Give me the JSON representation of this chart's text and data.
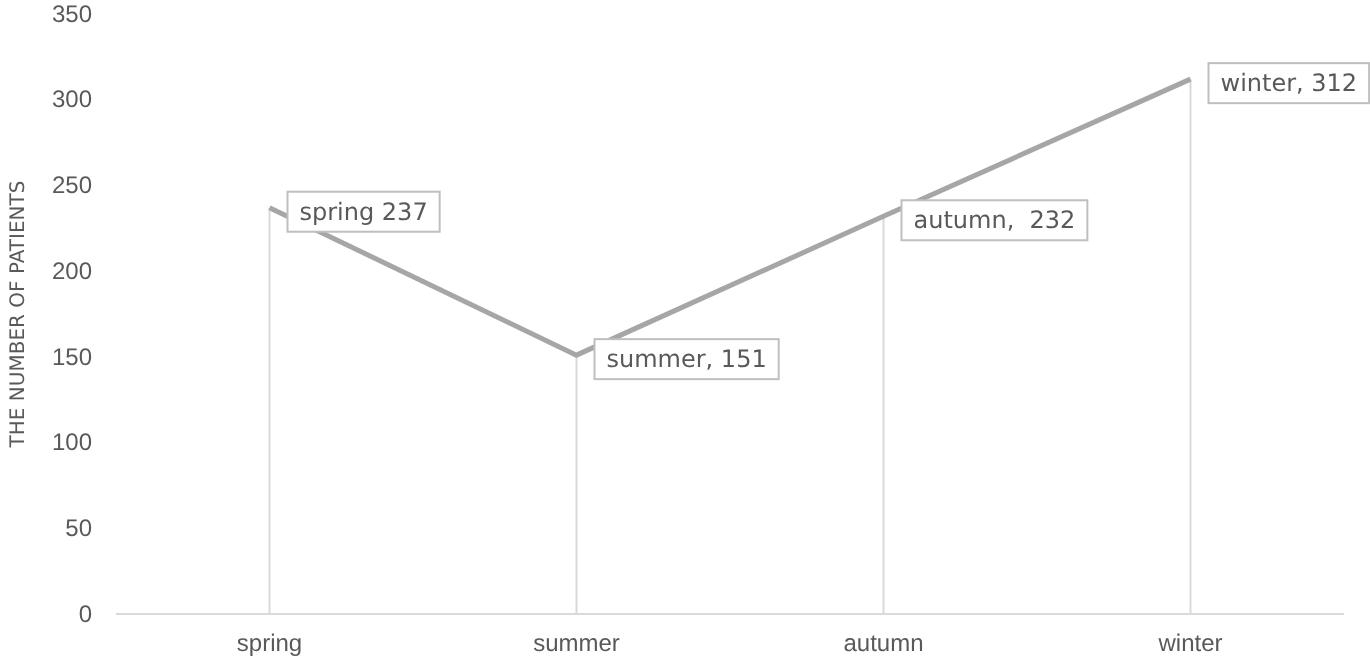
{
  "chart_data": {
    "type": "line",
    "ylabel": "THE NUMBER OF PATIENTS",
    "categories": [
      "spring",
      "summer",
      "autumn",
      "winter"
    ],
    "series": [
      {
        "color": "#a6a6a6",
        "values": [
          237,
          151,
          232,
          312
        ]
      }
    ],
    "value_labels": [
      "spring 237",
      "summer, 151",
      "autumn,  232",
      "winter, 312"
    ],
    "ylim": [
      0,
      350
    ],
    "yticks": [
      0,
      50,
      100,
      150,
      200,
      250,
      300,
      350
    ],
    "grid": "x",
    "marker": "none",
    "line_style": "solid"
  }
}
